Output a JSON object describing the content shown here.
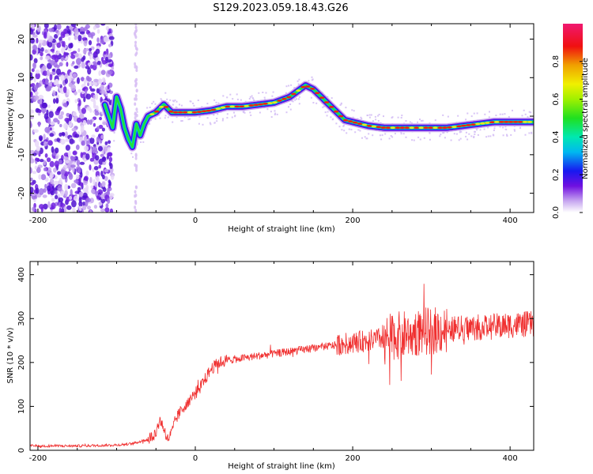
{
  "title": "S129.2023.059.18.43.G26",
  "chart_data": [
    {
      "type": "heatmap",
      "xlabel": "Height of straight line (km)",
      "ylabel": "Frequency (Hz)",
      "xlim": [
        -210,
        430
      ],
      "ylim": [
        -25,
        24
      ],
      "xticks": [
        "-200",
        "0",
        "200",
        "400"
      ],
      "yticks": [
        "20",
        "10",
        "0",
        "-10",
        "-20"
      ],
      "grid": false,
      "ridge": {
        "description_values": "dominant frequency (Hz) vs height (km)",
        "x": [
          -115,
          -110,
          -105,
          -100,
          -95,
          -90,
          -85,
          -80,
          -75,
          -70,
          -65,
          -60,
          -50,
          -40,
          -30,
          -20,
          0,
          20,
          40,
          60,
          80,
          100,
          120,
          130,
          140,
          150,
          160,
          170,
          180,
          190,
          200,
          220,
          240,
          260,
          280,
          300,
          320,
          340,
          360,
          380,
          400,
          420,
          430
        ],
        "y": [
          3,
          0,
          -3,
          5,
          2,
          -3,
          -6,
          -8,
          -2,
          -5,
          -2,
          0,
          1,
          3,
          1,
          1,
          1,
          1.5,
          2.5,
          2.5,
          3,
          3.5,
          5,
          6.5,
          8,
          7,
          5,
          3,
          1,
          -1,
          -1.5,
          -2.5,
          -3,
          -3,
          -3,
          -3,
          -3,
          -2.5,
          -2,
          -1.5,
          -1.5,
          -1.5,
          -1.5
        ]
      },
      "colorbar": {
        "label": "Normalized spectral amplitude",
        "ticks": [
          "0.0",
          "0.2",
          "0.4",
          "0.6",
          "0.8"
        ],
        "range": [
          0,
          1
        ]
      }
    },
    {
      "type": "line",
      "xlabel": "Height of straight line (km)",
      "ylabel": "SNR (10 * v/v)",
      "xlim": [
        -210,
        430
      ],
      "ylim": [
        0,
        430
      ],
      "xticks": [
        "-200",
        "0",
        "200",
        "400"
      ],
      "yticks": [
        "400",
        "300",
        "200",
        "100",
        "0"
      ],
      "color": "#f03030",
      "grid": false,
      "trend": {
        "x": [
          -210,
          -150,
          -100,
          -80,
          -60,
          -50,
          -45,
          -40,
          -35,
          -30,
          -25,
          -20,
          -10,
          0,
          10,
          20,
          30,
          40,
          60,
          80,
          100,
          120,
          140,
          160,
          180,
          200,
          220,
          240,
          260,
          280,
          300,
          320,
          340,
          360,
          380,
          400,
          420,
          430
        ],
        "y": [
          10,
          10,
          12,
          15,
          25,
          40,
          70,
          50,
          25,
          40,
          70,
          85,
          110,
          130,
          155,
          185,
          200,
          205,
          210,
          215,
          220,
          225,
          230,
          235,
          240,
          245,
          250,
          255,
          262,
          268,
          272,
          275,
          278,
          280,
          282,
          285,
          287,
          288
        ]
      }
    }
  ]
}
